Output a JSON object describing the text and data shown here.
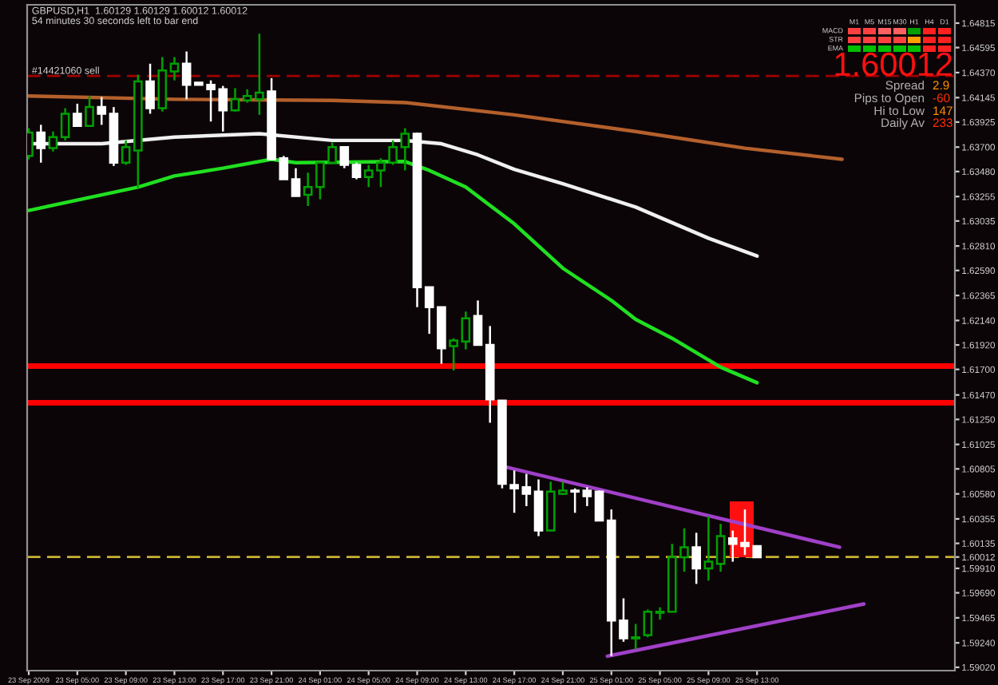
{
  "chart_data": {
    "type": "candlestick",
    "title": "GBPUSD,H1  1.60129 1.60129 1.60012 1.60012",
    "subtitle": "54 minutes 30 seconds left to bar end",
    "x": [
      "2009-09-23T01:00",
      "2009-09-23T02:00",
      "2009-09-23T03:00",
      "2009-09-23T04:00",
      "2009-09-23T05:00",
      "2009-09-23T06:00",
      "2009-09-23T07:00",
      "2009-09-23T08:00",
      "2009-09-23T09:00",
      "2009-09-23T10:00",
      "2009-09-23T11:00",
      "2009-09-23T12:00",
      "2009-09-23T13:00",
      "2009-09-23T14:00",
      "2009-09-23T15:00",
      "2009-09-23T16:00",
      "2009-09-23T17:00",
      "2009-09-23T18:00",
      "2009-09-23T19:00",
      "2009-09-23T20:00",
      "2009-09-23T21:00",
      "2009-09-23T22:00",
      "2009-09-23T23:00",
      "2009-09-24T00:00",
      "2009-09-24T01:00",
      "2009-09-24T02:00",
      "2009-09-24T03:00",
      "2009-09-24T04:00",
      "2009-09-24T05:00",
      "2009-09-24T06:00",
      "2009-09-24T07:00",
      "2009-09-24T08:00",
      "2009-09-24T09:00",
      "2009-09-24T10:00",
      "2009-09-24T11:00",
      "2009-09-24T12:00",
      "2009-09-24T13:00",
      "2009-09-24T14:00",
      "2009-09-24T15:00",
      "2009-09-24T16:00",
      "2009-09-24T17:00",
      "2009-09-24T18:00",
      "2009-09-24T19:00",
      "2009-09-24T20:00",
      "2009-09-24T21:00",
      "2009-09-24T22:00",
      "2009-09-24T23:00",
      "2009-09-25T00:00",
      "2009-09-25T01:00",
      "2009-09-25T02:00",
      "2009-09-25T03:00",
      "2009-09-25T04:00",
      "2009-09-25T05:00",
      "2009-09-25T06:00",
      "2009-09-25T07:00",
      "2009-09-25T08:00",
      "2009-09-25T09:00",
      "2009-09-25T10:00",
      "2009-09-25T11:00",
      "2009-09-25T12:00",
      "2009-09-25T13:00"
    ],
    "ohlc": [
      [
        1.6362,
        1.6387,
        1.6359,
        1.6383
      ],
      [
        1.6383,
        1.639,
        1.6356,
        1.6369
      ],
      [
        1.6369,
        1.6384,
        1.6366,
        1.6379
      ],
      [
        1.6379,
        1.6405,
        1.6376,
        1.64
      ],
      [
        1.64,
        1.6409,
        1.6389,
        1.6389
      ],
      [
        1.6389,
        1.6416,
        1.6389,
        1.6406
      ],
      [
        1.6406,
        1.6415,
        1.639,
        1.64
      ],
      [
        1.64,
        1.6406,
        1.6353,
        1.6356
      ],
      [
        1.6356,
        1.6376,
        1.6354,
        1.637
      ],
      [
        1.6367,
        1.6435,
        1.6333,
        1.6429
      ],
      [
        1.6429,
        1.6445,
        1.64,
        1.6405
      ],
      [
        1.6405,
        1.6451,
        1.6402,
        1.6439
      ],
      [
        1.6438,
        1.6451,
        1.643,
        1.6445
      ],
      [
        1.6445,
        1.6456,
        1.6413,
        1.6426
      ],
      [
        1.6428,
        1.6428,
        1.6426,
        1.6426
      ],
      [
        1.6426,
        1.643,
        1.6393,
        1.6422
      ],
      [
        1.6422,
        1.6425,
        1.6384,
        1.6403
      ],
      [
        1.6403,
        1.6423,
        1.6402,
        1.6413
      ],
      [
        1.6412,
        1.6422,
        1.641,
        1.6416
      ],
      [
        1.6413,
        1.6472,
        1.6399,
        1.6419
      ],
      [
        1.642,
        1.6432,
        1.6359,
        1.6359
      ],
      [
        1.636,
        1.6362,
        1.6341,
        1.6341
      ],
      [
        1.6341,
        1.6351,
        1.6326,
        1.6326
      ],
      [
        1.6327,
        1.6347,
        1.6317,
        1.6334
      ],
      [
        1.6334,
        1.6356,
        1.6323,
        1.6356
      ],
      [
        1.6356,
        1.6374,
        1.6356,
        1.637
      ],
      [
        1.637,
        1.637,
        1.6351,
        1.6354
      ],
      [
        1.6354,
        1.6356,
        1.6341,
        1.6343
      ],
      [
        1.6343,
        1.6354,
        1.6334,
        1.6349
      ],
      [
        1.6349,
        1.636,
        1.6334,
        1.6356
      ],
      [
        1.6356,
        1.6376,
        1.6354,
        1.637
      ],
      [
        1.637,
        1.6387,
        1.6349,
        1.6382
      ],
      [
        1.6382,
        1.6383,
        1.6226,
        1.6244
      ],
      [
        1.6244,
        1.6244,
        1.6202,
        1.6226
      ],
      [
        1.6226,
        1.6226,
        1.6175,
        1.6189
      ],
      [
        1.6191,
        1.6198,
        1.6169,
        1.6196
      ],
      [
        1.6195,
        1.6222,
        1.6188,
        1.6216
      ],
      [
        1.6218,
        1.6232,
        1.6192,
        1.6192
      ],
      [
        1.6192,
        1.6209,
        1.6122,
        1.6143
      ],
      [
        1.6142,
        1.6142,
        1.6063,
        1.6067
      ],
      [
        1.6066,
        1.6079,
        1.6041,
        1.6063
      ],
      [
        1.6064,
        1.6076,
        1.6047,
        1.6058
      ],
      [
        1.606,
        1.6071,
        1.602,
        1.6025
      ],
      [
        1.6025,
        1.6069,
        1.6025,
        1.606
      ],
      [
        1.6058,
        1.6069,
        1.6057,
        1.6061
      ],
      [
        1.6061,
        1.6063,
        1.6041,
        1.606
      ],
      [
        1.6061,
        1.6064,
        1.6047,
        1.6056
      ],
      [
        1.606,
        1.6061,
        1.6034,
        1.6034
      ],
      [
        1.6034,
        1.6044,
        1.5912,
        1.5944
      ],
      [
        1.5944,
        1.5964,
        1.5925,
        1.5928
      ],
      [
        1.5928,
        1.5941,
        1.5918,
        1.5929
      ],
      [
        1.5931,
        1.5954,
        1.5929,
        1.5952
      ],
      [
        1.5951,
        1.5956,
        1.5945,
        1.5952
      ],
      [
        1.5952,
        1.6013,
        1.5952,
        1.6001
      ],
      [
        1.6001,
        1.6027,
        1.5988,
        1.601
      ],
      [
        1.601,
        1.6023,
        1.5977,
        1.5991
      ],
      [
        1.5991,
        1.6038,
        1.598,
        1.5997
      ],
      [
        1.5995,
        1.6031,
        1.5988,
        1.602
      ],
      [
        1.6018,
        1.6025,
        1.5997,
        1.6013
      ],
      [
        1.6014,
        1.6044,
        1.6003,
        1.6011
      ],
      [
        1.6011,
        1.6011,
        1.6001,
        1.6001
      ]
    ],
    "colors": [
      "#00a000",
      "#ffffff",
      "#00a000",
      "#00a000",
      "#ffffff",
      "#00a000",
      "#ffffff",
      "#ffffff",
      "#00a000",
      "#00a000",
      "#ffffff",
      "#00a000",
      "#00a000",
      "#ffffff",
      "#ffffff",
      "#ffffff",
      "#ffffff",
      "#00a000",
      "#00a000",
      "#00a000",
      "#ffffff",
      "#ffffff",
      "#ffffff",
      "#00a000",
      "#00a000",
      "#00a000",
      "#ffffff",
      "#ffffff",
      "#00a000",
      "#00a000",
      "#00a000",
      "#00a000",
      "#ffffff",
      "#ffffff",
      "#ffffff",
      "#00a000",
      "#00a000",
      "#ffffff",
      "#ffffff",
      "#ffffff",
      "#ffffff",
      "#ffffff",
      "#ffffff",
      "#00a000",
      "#00a000",
      "#ffffff",
      "#ffffff",
      "#ffffff",
      "#ffffff",
      "#ffffff",
      "#00a000",
      "#00a000",
      "#00a000",
      "#00a000",
      "#00a000",
      "#ffffff",
      "#00a000",
      "#00a000",
      "#ffffff",
      "#ffffff",
      "#ffffff"
    ],
    "series": [
      {
        "type": "line",
        "color": "#b4602c",
        "x": [
          "2009-09-23T01:00",
          "2009-09-23T13:00",
          "2009-09-24T02:00",
          "2009-09-24T08:00",
          "2009-09-24T17:00",
          "2009-09-25T03:00",
          "2009-09-25T12:00",
          "2009-09-25T20:00"
        ],
        "values": [
          1.6416,
          1.6413,
          1.6412,
          1.641,
          1.6399,
          1.6384,
          1.6369,
          1.6359
        ]
      },
      {
        "type": "line",
        "color": "#f0f0f0",
        "x": [
          "2009-09-23T01:00",
          "2009-09-23T07:00",
          "2009-09-23T13:00",
          "2009-09-23T20:00",
          "2009-09-24T02:00",
          "2009-09-24T08:00",
          "2009-09-24T11:00",
          "2009-09-24T14:00",
          "2009-09-24T17:00",
          "2009-09-24T21:00",
          "2009-09-25T03:00",
          "2009-09-25T09:00",
          "2009-09-25T13:00"
        ],
        "values": [
          1.6373,
          1.6373,
          1.6379,
          1.6382,
          1.6376,
          1.6376,
          1.6373,
          1.6363,
          1.635,
          1.6337,
          1.6316,
          1.6288,
          1.6272
        ]
      },
      {
        "type": "line",
        "color": "#20e020",
        "x": [
          "2009-09-23T01:00",
          "2009-09-23T07:00",
          "2009-09-23T10:00",
          "2009-09-23T13:00",
          "2009-09-23T17:00",
          "2009-09-23T21:00",
          "2009-09-23T23:00",
          "2009-09-24T08:00",
          "2009-09-24T10:00",
          "2009-09-24T13:00",
          "2009-09-24T17:00",
          "2009-09-24T21:00",
          "2009-09-25T01:00",
          "2009-09-25T03:00",
          "2009-09-25T06:00",
          "2009-09-25T10:00",
          "2009-09-25T13:00"
        ],
        "values": [
          1.6313,
          1.6327,
          1.6334,
          1.6344,
          1.6351,
          1.6359,
          1.6356,
          1.6357,
          1.6349,
          1.6334,
          1.6301,
          1.6261,
          1.6232,
          1.6215,
          1.6198,
          1.6172,
          1.6158
        ]
      },
      {
        "type": "line",
        "color": "#a040c8",
        "x": [
          "2009-09-24T16:00",
          "2009-09-25T19:48"
        ],
        "values": [
          1.6083,
          1.601
        ]
      },
      {
        "type": "line",
        "color": "#a040c8",
        "x": [
          "2009-09-25T00:40",
          "2009-09-25T21:48"
        ],
        "values": [
          1.5912,
          1.5959
        ]
      }
    ],
    "ref_lines": [
      {
        "axis": "y",
        "value": 1.6434,
        "label": "#14421060 sell",
        "color": "#a00000",
        "line_style": "dashed"
      },
      {
        "axis": "y",
        "value": 1.6173,
        "color": "#ff0000",
        "line_style": "solid"
      },
      {
        "axis": "y",
        "value": 1.614,
        "color": "#ff0000",
        "line_style": "solid"
      },
      {
        "axis": "y",
        "value": 1.60012,
        "color": "#c8b432",
        "line_style": "dashed"
      }
    ],
    "xlim": [
      "2009-09-23T00:52",
      "2009-09-26T05:18"
    ],
    "xticks": [
      {
        "value": "2009-09-23T01:00",
        "label": "23 Sep 2009"
      },
      {
        "value": "2009-09-23T05:00",
        "label": "23 Sep 05:00"
      },
      {
        "value": "2009-09-23T09:00",
        "label": "23 Sep 09:00"
      },
      {
        "value": "2009-09-23T13:00",
        "label": "23 Sep 13:00"
      },
      {
        "value": "2009-09-23T17:00",
        "label": "23 Sep 17:00"
      },
      {
        "value": "2009-09-23T21:00",
        "label": "23 Sep 21:00"
      },
      {
        "value": "2009-09-24T01:00",
        "label": "24 Sep 01:00"
      },
      {
        "value": "2009-09-24T05:00",
        "label": "24 Sep 05:00"
      },
      {
        "value": "2009-09-24T09:00",
        "label": "24 Sep 09:00"
      },
      {
        "value": "2009-09-24T13:00",
        "label": "24 Sep 13:00"
      },
      {
        "value": "2009-09-24T17:00",
        "label": "24 Sep 17:00"
      },
      {
        "value": "2009-09-24T21:00",
        "label": "24 Sep 21:00"
      },
      {
        "value": "2009-09-25T01:00",
        "label": "25 Sep 01:00"
      },
      {
        "value": "2009-09-25T05:00",
        "label": "25 Sep 05:00"
      },
      {
        "value": "2009-09-25T09:00",
        "label": "25 Sep 09:00"
      },
      {
        "value": "2009-09-25T13:00",
        "label": "25 Sep 13:00"
      }
    ],
    "ylim": [
      1.5899,
      1.6498
    ],
    "yticks": [
      {
        "value": 1.64815,
        "label": "1.64815"
      },
      {
        "value": 1.64595,
        "label": "1.64595"
      },
      {
        "value": 1.6437,
        "label": "1.64370"
      },
      {
        "value": 1.64145,
        "label": "1.64145"
      },
      {
        "value": 1.63925,
        "label": "1.63925"
      },
      {
        "value": 1.637,
        "label": "1.63700"
      },
      {
        "value": 1.6348,
        "label": "1.63480"
      },
      {
        "value": 1.63255,
        "label": "1.63255"
      },
      {
        "value": 1.63035,
        "label": "1.63035"
      },
      {
        "value": 1.6281,
        "label": "1.62810"
      },
      {
        "value": 1.6259,
        "label": "1.62590"
      },
      {
        "value": 1.62365,
        "label": "1.62365"
      },
      {
        "value": 1.6214,
        "label": "1.62140"
      },
      {
        "value": 1.6192,
        "label": "1.61920"
      },
      {
        "value": 1.617,
        "label": "1.61700"
      },
      {
        "value": 1.6147,
        "label": "1.61470"
      },
      {
        "value": 1.6125,
        "label": "1.61250"
      },
      {
        "value": 1.61025,
        "label": "1.61025"
      },
      {
        "value": 1.60805,
        "label": "1.60805"
      },
      {
        "value": 1.6058,
        "label": "1.60580"
      },
      {
        "value": 1.60355,
        "label": "1.60355"
      },
      {
        "value": 1.60135,
        "label": "1.60135"
      },
      {
        "value": 1.60012,
        "label": "1.60012"
      },
      {
        "value": 1.5991,
        "label": "1.59910"
      },
      {
        "value": 1.5969,
        "label": "1.59690"
      },
      {
        "value": 1.59465,
        "label": "1.59465"
      },
      {
        "value": 1.5924,
        "label": "1.59240"
      },
      {
        "value": 1.5902,
        "label": "1.59020"
      }
    ],
    "annotations": [
      "M1",
      "M5",
      "M15",
      "M30",
      "H1",
      "H4",
      "D1",
      "MACD",
      "STR",
      "EMA",
      "1.60012",
      "Spread",
      "2.9",
      "Pips to Open",
      "-60",
      "Hi to Low",
      "147",
      "Daily Av",
      "233"
    ]
  }
}
